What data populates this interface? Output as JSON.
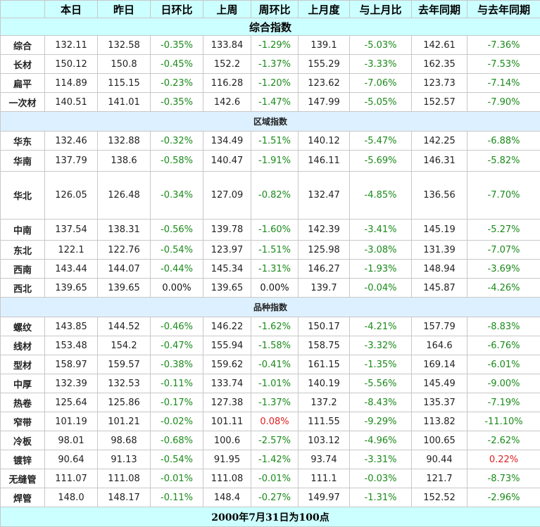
{
  "headers": [
    "",
    "本日",
    "昨日",
    "日环比",
    "上周",
    "周环比",
    "上月度",
    "与上月比",
    "去年同期",
    "与去年同期"
  ],
  "title": "综合指数",
  "sections": [
    {
      "label": null,
      "rows": [
        {
          "name": "综合",
          "vals": [
            "132.11",
            "132.58",
            "-0.35%",
            "133.84",
            "-1.29%",
            "139.1",
            "-5.03%",
            "142.61",
            "-7.36%"
          ]
        },
        {
          "name": "长材",
          "vals": [
            "150.12",
            "150.8",
            "-0.45%",
            "152.2",
            "-1.37%",
            "155.29",
            "-3.33%",
            "162.35",
            "-7.53%"
          ]
        },
        {
          "name": "扁平",
          "vals": [
            "114.89",
            "115.15",
            "-0.23%",
            "116.28",
            "-1.20%",
            "123.62",
            "-7.06%",
            "123.73",
            "-7.14%"
          ]
        },
        {
          "name": "一次材",
          "vals": [
            "140.51",
            "141.01",
            "-0.35%",
            "142.6",
            "-1.47%",
            "147.99",
            "-5.05%",
            "152.57",
            "-7.90%"
          ]
        }
      ]
    },
    {
      "label": "区域指数",
      "rows": [
        {
          "name": "华东",
          "vals": [
            "132.46",
            "132.88",
            "-0.32%",
            "134.49",
            "-1.51%",
            "140.12",
            "-5.47%",
            "142.25",
            "-6.88%"
          ]
        },
        {
          "name": "华南",
          "vals": [
            "137.79",
            "138.6",
            "-0.58%",
            "140.47",
            "-1.91%",
            "146.11",
            "-5.69%",
            "146.31",
            "-5.82%"
          ]
        },
        {
          "name": "华北",
          "vals": [
            "126.05",
            "126.48",
            "-0.34%",
            "127.09",
            "-0.82%",
            "132.47",
            "-4.85%",
            "136.56",
            "-7.70%"
          ]
        },
        {
          "name": "中南",
          "vals": [
            "137.54",
            "138.31",
            "-0.56%",
            "139.78",
            "-1.60%",
            "142.39",
            "-3.41%",
            "145.19",
            "-5.27%"
          ]
        },
        {
          "name": "东北",
          "vals": [
            "122.1",
            "122.76",
            "-0.54%",
            "123.97",
            "-1.51%",
            "125.98",
            "-3.08%",
            "131.39",
            "-7.07%"
          ]
        },
        {
          "name": "西南",
          "vals": [
            "143.44",
            "144.07",
            "-0.44%",
            "145.34",
            "-1.31%",
            "146.27",
            "-1.93%",
            "148.94",
            "-3.69%"
          ]
        },
        {
          "name": "西北",
          "vals": [
            "139.65",
            "139.65",
            "0.00%",
            "139.65",
            "0.00%",
            "139.7",
            "-0.04%",
            "145.87",
            "-4.26%"
          ]
        }
      ]
    },
    {
      "label": "品种指数",
      "rows": [
        {
          "name": "螺纹",
          "vals": [
            "143.85",
            "144.52",
            "-0.46%",
            "146.22",
            "-1.62%",
            "150.17",
            "-4.21%",
            "157.79",
            "-8.83%"
          ]
        },
        {
          "name": "线材",
          "vals": [
            "153.48",
            "154.2",
            "-0.47%",
            "155.94",
            "-1.58%",
            "158.75",
            "-3.32%",
            "164.6",
            "-6.76%"
          ]
        },
        {
          "name": "型材",
          "vals": [
            "158.97",
            "159.57",
            "-0.38%",
            "159.62",
            "-0.41%",
            "161.15",
            "-1.35%",
            "169.14",
            "-6.01%"
          ]
        },
        {
          "name": "中厚",
          "vals": [
            "132.39",
            "132.53",
            "-0.11%",
            "133.74",
            "-1.01%",
            "140.19",
            "-5.56%",
            "145.49",
            "-9.00%"
          ]
        },
        {
          "name": "热卷",
          "vals": [
            "125.64",
            "125.86",
            "-0.17%",
            "127.38",
            "-1.37%",
            "137.2",
            "-8.43%",
            "135.37",
            "-7.19%"
          ]
        },
        {
          "name": "窄带",
          "vals": [
            "101.19",
            "101.21",
            "-0.02%",
            "101.11",
            "0.08%",
            "111.55",
            "-9.29%",
            "113.82",
            "-11.10%"
          ]
        },
        {
          "name": "冷板",
          "vals": [
            "98.01",
            "98.68",
            "-0.68%",
            "100.6",
            "-2.57%",
            "103.12",
            "-4.96%",
            "100.65",
            "-2.62%"
          ]
        },
        {
          "name": "镀锌",
          "vals": [
            "90.64",
            "91.13",
            "-0.54%",
            "91.95",
            "-1.42%",
            "93.74",
            "-3.31%",
            "90.44",
            "0.22%"
          ]
        },
        {
          "name": "无缝管",
          "vals": [
            "111.07",
            "111.08",
            "-0.01%",
            "111.08",
            "-0.01%",
            "111.1",
            "-0.03%",
            "121.7",
            "-8.73%"
          ]
        },
        {
          "name": "焊管",
          "vals": [
            "148.0",
            "148.17",
            "-0.11%",
            "148.4",
            "-0.27%",
            "149.97",
            "-1.31%",
            "152.52",
            "-2.96%"
          ]
        }
      ]
    }
  ],
  "footer": "2000年7月31日为100点",
  "colors": {
    "negative": "#1a8a1a",
    "positive": "#e02020",
    "header_bg": "#ccffff",
    "section_bg": "#ddf0ff"
  }
}
